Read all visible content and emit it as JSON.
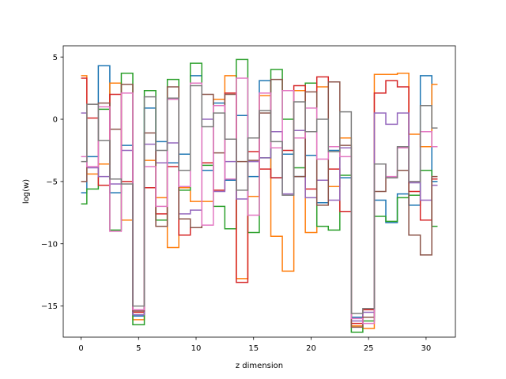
{
  "chart_data": {
    "type": "line",
    "drawstyle": "steps-mid",
    "xlabel": "z dimension",
    "ylabel": "log(w)",
    "xlim": [
      -1.55,
      32.55
    ],
    "ylim": [
      -17.5,
      5.9
    ],
    "xticks": [
      0,
      5,
      10,
      15,
      20,
      25,
      30
    ],
    "yticks": [
      -15,
      -10,
      -5,
      0,
      5
    ],
    "ytick_labels": [
      "−15",
      "−10",
      "−5",
      "0",
      "5"
    ],
    "grid": false,
    "x": [
      0,
      1,
      2,
      3,
      4,
      5,
      6,
      7,
      8,
      9,
      10,
      11,
      12,
      13,
      14,
      15,
      16,
      17,
      18,
      19,
      20,
      21,
      22,
      23,
      24,
      25,
      26,
      27,
      28,
      29,
      30,
      31
    ],
    "series": [
      {
        "color": "#1f77b4",
        "values": [
          -5.9,
          -3.0,
          4.3,
          -5.9,
          -2.1,
          -15.8,
          0.9,
          -1.8,
          -3.5,
          -2.8,
          3.5,
          -4.1,
          1.3,
          -4.9,
          0.3,
          -4.6,
          3.1,
          -4.7,
          -2.8,
          -4.6,
          -2.9,
          -6.7,
          -2.5,
          -4.7,
          -15.9,
          -15.9,
          -6.5,
          -8.3,
          -6.0,
          -6.9,
          3.5,
          -5.0
        ]
      },
      {
        "color": "#ff7f0e",
        "values": [
          3.5,
          -4.4,
          -3.6,
          2.9,
          -8.1,
          -16.1,
          -3.3,
          -6.3,
          -10.3,
          -5.5,
          -6.6,
          -6.6,
          1.6,
          3.5,
          -12.8,
          -6.2,
          1.9,
          -9.4,
          -12.2,
          2.3,
          -9.1,
          2.6,
          -5.4,
          -1.5,
          -16.6,
          -16.8,
          3.6,
          3.6,
          3.7,
          -1.2,
          -2.2,
          2.8
        ]
      },
      {
        "color": "#2ca02c",
        "values": [
          -6.8,
          -5.6,
          0.8,
          -8.9,
          3.7,
          -16.5,
          2.3,
          -8.1,
          3.2,
          -5.7,
          4.5,
          -3.7,
          -7.0,
          -8.8,
          4.8,
          -9.1,
          -3.1,
          4.0,
          0.0,
          -3.9,
          2.9,
          -8.6,
          -8.9,
          -4.5,
          -17.1,
          -16.2,
          -7.8,
          -8.2,
          -6.3,
          -6.1,
          -4.1,
          -8.6
        ]
      },
      {
        "color": "#d62728",
        "values": [
          3.3,
          0.1,
          -5.3,
          2.0,
          -5.0,
          -15.5,
          -5.5,
          -7.6,
          -3.8,
          -9.3,
          -8.7,
          -3.5,
          -5.7,
          2.1,
          -13.1,
          -2.6,
          -4.0,
          -4.7,
          -2.5,
          2.7,
          -5.6,
          3.4,
          -4.0,
          -7.4,
          -16.4,
          -15.3,
          2.1,
          3.1,
          2.6,
          -5.8,
          -8.1,
          -4.8
        ]
      },
      {
        "color": "#9467bd",
        "values": [
          0.5,
          -3.9,
          -4.6,
          -5.2,
          -2.5,
          -15.7,
          -2.0,
          -3.5,
          -1.9,
          -7.6,
          -7.3,
          0.0,
          -5.8,
          -3.4,
          -6.4,
          -3.4,
          -3.1,
          -1.0,
          -6.0,
          -0.9,
          -6.3,
          -4.9,
          -6.5,
          -2.3,
          -16.2,
          -15.5,
          0.5,
          -0.4,
          0.5,
          -5.1,
          -6.5,
          -5.3
        ]
      },
      {
        "color": "#8c564b",
        "values": [
          -5.0,
          1.2,
          1.3,
          -0.8,
          2.8,
          -15.4,
          -1.1,
          -8.6,
          2.6,
          -8.0,
          -8.7,
          2.0,
          -2.7,
          2.0,
          -3.4,
          -3.3,
          0.5,
          3.2,
          2.3,
          -4.6,
          2.2,
          -6.9,
          3.0,
          -2.1,
          -16.7,
          -15.9,
          -5.8,
          -4.7,
          -4.1,
          -9.3,
          -10.9,
          -4.6
        ]
      },
      {
        "color": "#e377c2",
        "values": [
          -3.0,
          -3.8,
          1.0,
          -9.0,
          2.1,
          -15.3,
          -3.8,
          -7.0,
          1.6,
          -5.4,
          2.9,
          -8.5,
          1.1,
          -4.8,
          3.3,
          -7.7,
          2.1,
          -2.3,
          2.3,
          -1.5,
          0.9,
          -3.2,
          -2.2,
          -3.0,
          -16.0,
          -16.4,
          -3.6,
          -4.6,
          -2.3,
          -5.0,
          -1.0,
          -2.2
        ]
      },
      {
        "color": "#7f7f7f",
        "values": [
          -3.4,
          1.2,
          -1.7,
          -4.8,
          -5.2,
          -15.0,
          1.8,
          -2.5,
          1.7,
          -4.1,
          2.7,
          -0.6,
          0.5,
          -1.6,
          -5.7,
          -1.5,
          0.7,
          -1.8,
          -6.1,
          1.4,
          -1.0,
          0.0,
          -2.6,
          0.6,
          -15.6,
          -15.2,
          -3.6,
          -4.7,
          -2.2,
          -5.0,
          1.1,
          -0.7
        ]
      }
    ]
  }
}
